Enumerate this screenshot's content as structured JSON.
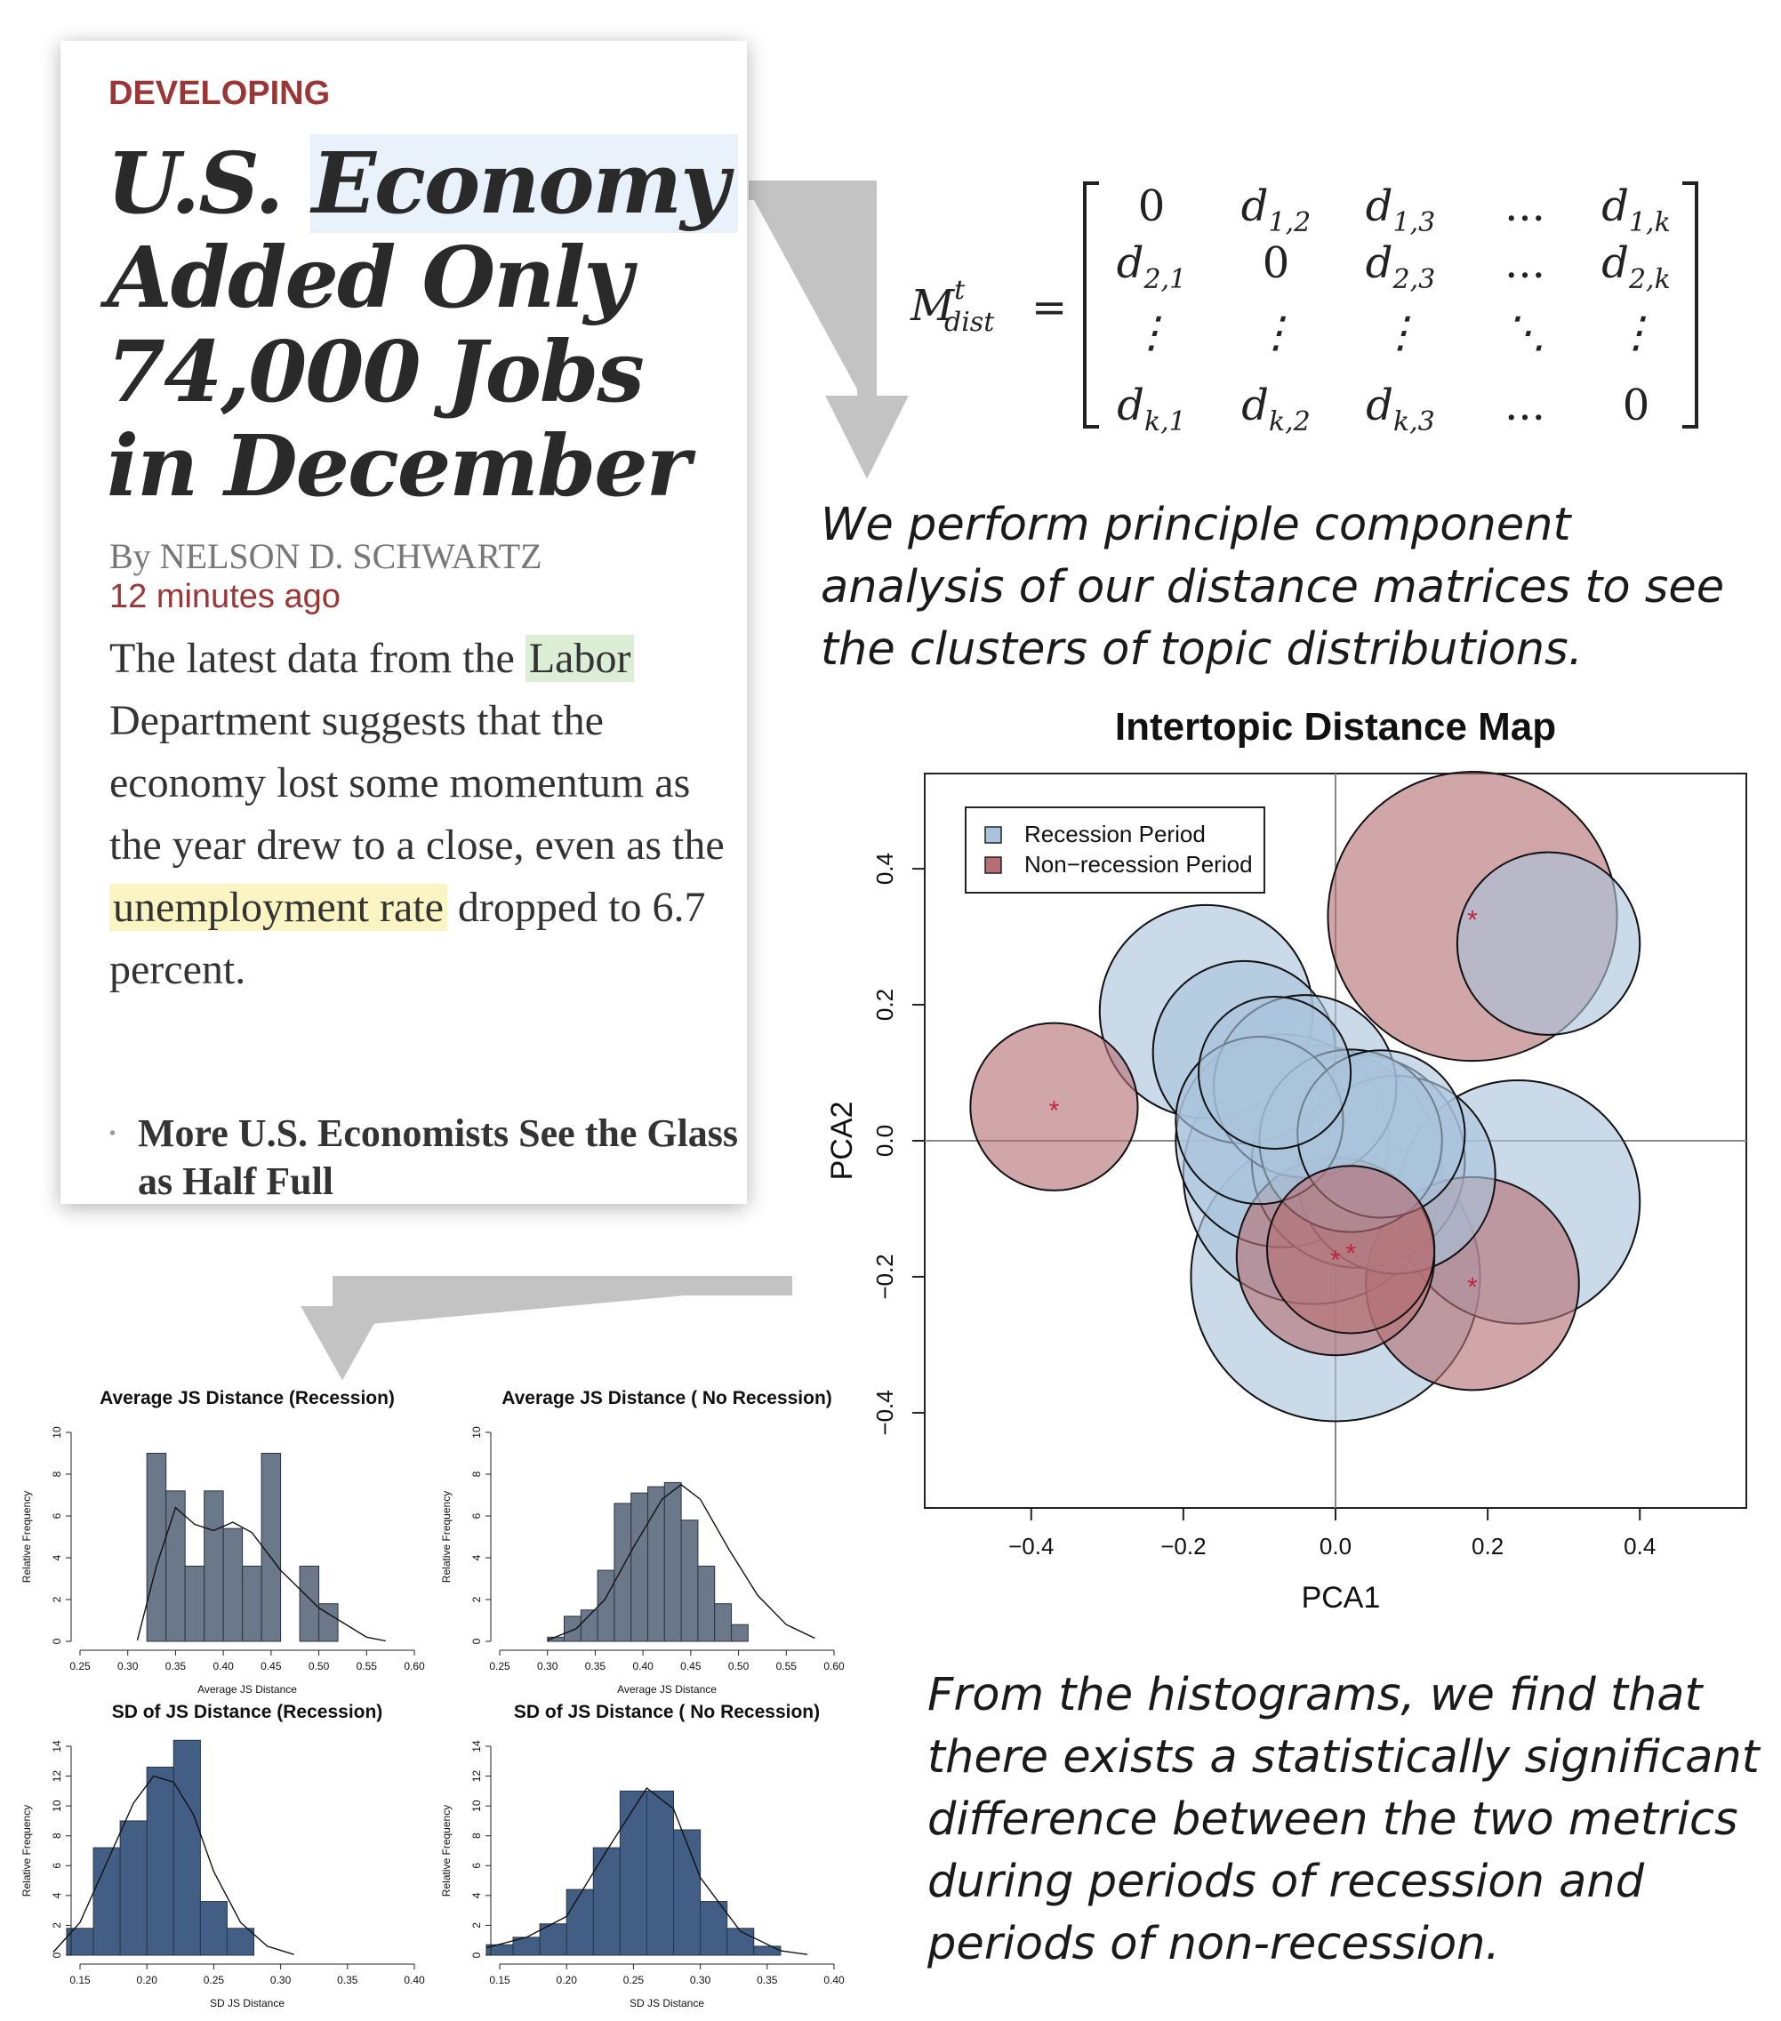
{
  "article": {
    "kicker": "DEVELOPING",
    "headline_pre": "U.S. ",
    "headline_highlight": "Economy",
    "headline_post": "Added Only 74,000 Jobs in December",
    "byline": "By NELSON D. SCHWARTZ",
    "timestamp": "12 minutes ago",
    "body_1": "The latest data from the ",
    "body_highlight_1": "Labor",
    "body_2": " Department suggests that the economy lost some momentum as the year drew to a close, even as the ",
    "body_highlight_2": "unemployment rate",
    "body_3": " dropped to 6.7 percent.",
    "related_bullet": "•",
    "related_link": "More U.S. Economists See the Glass as Half Full"
  },
  "matrix": {
    "lhs": "M",
    "lhs_sup": "t",
    "lhs_sub": "dist",
    "equals": "=",
    "rows": [
      [
        {
          "m": "0",
          "s": ""
        },
        {
          "m": "d",
          "s": "1,2"
        },
        {
          "m": "d",
          "s": "1,3"
        },
        {
          "m": "...",
          "s": ""
        },
        {
          "m": "d",
          "s": "1,k"
        }
      ],
      [
        {
          "m": "d",
          "s": "2,1"
        },
        {
          "m": "0",
          "s": ""
        },
        {
          "m": "d",
          "s": "2,3"
        },
        {
          "m": "...",
          "s": ""
        },
        {
          "m": "d",
          "s": "2,k"
        }
      ],
      [
        {
          "m": "⋮",
          "s": ""
        },
        {
          "m": "⋮",
          "s": ""
        },
        {
          "m": "⋮",
          "s": ""
        },
        {
          "m": "⋱",
          "s": ""
        },
        {
          "m": "⋮",
          "s": ""
        }
      ],
      [
        {
          "m": "d",
          "s": "k,1"
        },
        {
          "m": "d",
          "s": "k,2"
        },
        {
          "m": "d",
          "s": "k,3"
        },
        {
          "m": "...",
          "s": ""
        },
        {
          "m": "0",
          "s": ""
        }
      ]
    ]
  },
  "caption_pca": "We perform principle component analysis of our distance matrices to see the clusters of topic distributions.",
  "caption_hist": "From the histograms, we find that there exists a statistically significant difference between the two metrics during periods of recession and periods of non-recession.",
  "colors": {
    "recession": "#a9c3db",
    "non_recession": "#b56f74",
    "hist_top": "#6a7889",
    "hist_bottom": "#435e84",
    "kicker": "#9b3636",
    "arrow": "#c3c3c3"
  },
  "chart_data": [
    {
      "type": "scatter",
      "title": "Intertopic Distance Map",
      "xlabel": "PCA1",
      "ylabel": "PCA2",
      "xlim": [
        -0.54,
        0.54
      ],
      "ylim": [
        -0.54,
        0.54
      ],
      "xticks": [
        "−0.4",
        "−0.2",
        "0.0",
        "0.2",
        "0.4"
      ],
      "xtick_values": [
        -0.4,
        -0.2,
        0,
        0.2,
        0.4
      ],
      "yticks": [
        "−0.4",
        "−0.2",
        "0.0",
        "0.2",
        "0.4"
      ],
      "ytick_values": [
        -0.4,
        -0.2,
        0,
        0.2,
        0.4
      ],
      "legend": [
        "Recession Period",
        "Non−recession Period"
      ],
      "legend_position": "top-left",
      "series": [
        {
          "name": "Recession Period",
          "points": [
            {
              "x": -0.17,
              "y": 0.19,
              "r": 0.14
            },
            {
              "x": -0.12,
              "y": 0.13,
              "r": 0.12
            },
            {
              "x": -0.08,
              "y": 0.1,
              "r": 0.1
            },
            {
              "x": -0.04,
              "y": 0.08,
              "r": 0.12
            },
            {
              "x": -0.07,
              "y": 0.0,
              "r": 0.14
            },
            {
              "x": -0.1,
              "y": 0.03,
              "r": 0.11
            },
            {
              "x": 0.03,
              "y": -0.03,
              "r": 0.14
            },
            {
              "x": 0.02,
              "y": 0.0,
              "r": 0.12
            },
            {
              "x": 0.08,
              "y": -0.05,
              "r": 0.13
            },
            {
              "x": 0.06,
              "y": 0.01,
              "r": 0.11
            },
            {
              "x": 0.24,
              "y": -0.09,
              "r": 0.16
            },
            {
              "x": 0.28,
              "y": 0.29,
              "r": 0.12
            },
            {
              "x": 0.0,
              "y": -0.2,
              "r": 0.19
            },
            {
              "x": -0.03,
              "y": -0.05,
              "r": 0.17
            }
          ]
        },
        {
          "name": "Non−recession Period",
          "points": [
            {
              "x": -0.37,
              "y": 0.05,
              "r": 0.11
            },
            {
              "x": 0.18,
              "y": 0.33,
              "r": 0.19
            },
            {
              "x": 0.0,
              "y": -0.17,
              "r": 0.13
            },
            {
              "x": 0.18,
              "y": -0.21,
              "r": 0.14
            },
            {
              "x": 0.02,
              "y": -0.16,
              "r": 0.11
            }
          ]
        }
      ]
    },
    {
      "type": "bar",
      "title": "Average JS Distance (Recession)",
      "xlabel": "Average JS Distance",
      "ylabel": "Relative Frequency",
      "xlim": [
        0.25,
        0.6
      ],
      "ylim": [
        0,
        10
      ],
      "xticks": [
        "0.25",
        "0.30",
        "0.35",
        "0.40",
        "0.45",
        "0.50",
        "0.55",
        "0.60"
      ],
      "yticks": [
        "0",
        "2",
        "4",
        "6",
        "8",
        "10"
      ],
      "bin_start": 0.32,
      "bin_width": 0.02,
      "values": [
        9,
        7.2,
        3.6,
        7.2,
        5.4,
        3.6,
        9,
        0,
        3.6,
        1.8
      ],
      "density": [
        [
          0.31,
          0.05
        ],
        [
          0.33,
          3.6
        ],
        [
          0.35,
          6.4
        ],
        [
          0.37,
          5.6
        ],
        [
          0.39,
          5.3
        ],
        [
          0.41,
          5.7
        ],
        [
          0.43,
          5.2
        ],
        [
          0.46,
          3.4
        ],
        [
          0.5,
          1.6
        ],
        [
          0.55,
          0.2
        ],
        [
          0.57,
          0.02
        ]
      ]
    },
    {
      "type": "bar",
      "title": "Average JS Distance ( No Recession)",
      "xlabel": "Average JS Distance",
      "ylabel": "Relative Frequency",
      "xlim": [
        0.25,
        0.6
      ],
      "ylim": [
        0,
        10
      ],
      "xticks": [
        "0.25",
        "0.30",
        "0.35",
        "0.40",
        "0.45",
        "0.50",
        "0.55",
        "0.60"
      ],
      "yticks": [
        "0",
        "2",
        "4",
        "6",
        "8",
        "10"
      ],
      "bin_start": 0.3,
      "bin_width": 0.0175,
      "values": [
        0.2,
        1.2,
        1.5,
        3.4,
        6.6,
        7.1,
        7.4,
        7.6,
        5.8,
        3.6,
        1.8,
        0.8
      ],
      "density": [
        [
          0.3,
          0.05
        ],
        [
          0.33,
          0.6
        ],
        [
          0.36,
          2.0
        ],
        [
          0.39,
          4.5
        ],
        [
          0.42,
          6.8
        ],
        [
          0.44,
          7.5
        ],
        [
          0.46,
          6.8
        ],
        [
          0.49,
          4.4
        ],
        [
          0.52,
          2.2
        ],
        [
          0.55,
          0.8
        ],
        [
          0.58,
          0.15
        ]
      ]
    },
    {
      "type": "bar",
      "title": "SD of JS Distance (Recession)",
      "xlabel": "SD JS Distance",
      "ylabel": "Relative Frequency",
      "xlim": [
        0.13,
        0.4
      ],
      "ylim": [
        0,
        14
      ],
      "xticks": [
        "0.15",
        "0.20",
        "0.25",
        "0.30",
        "0.35",
        "0.40"
      ],
      "yticks": [
        "0",
        "2",
        "4",
        "6",
        "8",
        "10",
        "12",
        "14"
      ],
      "bin_start": 0.14,
      "bin_width": 0.02,
      "values": [
        1.8,
        7.2,
        9,
        12.6,
        14.4,
        3.6,
        1.8
      ],
      "density": [
        [
          0.13,
          0.2
        ],
        [
          0.15,
          2.2
        ],
        [
          0.17,
          6.2
        ],
        [
          0.19,
          10.2
        ],
        [
          0.205,
          12.0
        ],
        [
          0.22,
          11.6
        ],
        [
          0.235,
          9.4
        ],
        [
          0.25,
          5.6
        ],
        [
          0.27,
          2.2
        ],
        [
          0.29,
          0.6
        ],
        [
          0.31,
          0.05
        ]
      ]
    },
    {
      "type": "bar",
      "title": "SD of JS Distance ( No Recession)",
      "xlabel": "SD JS Distance",
      "ylabel": "Relative Frequency",
      "xlim": [
        0.13,
        0.4
      ],
      "ylim": [
        0,
        14
      ],
      "xticks": [
        "0.15",
        "0.20",
        "0.25",
        "0.30",
        "0.35",
        "0.40"
      ],
      "yticks": [
        "0",
        "2",
        "4",
        "6",
        "8",
        "10",
        "12",
        "14"
      ],
      "bin_start": 0.14,
      "bin_width": 0.02,
      "values": [
        0.7,
        1.2,
        2.1,
        4.4,
        7.2,
        11,
        11,
        8.4,
        3.6,
        1.8,
        0.6
      ],
      "density": [
        [
          0.14,
          0.5
        ],
        [
          0.17,
          1.2
        ],
        [
          0.2,
          2.6
        ],
        [
          0.23,
          7.0
        ],
        [
          0.26,
          11.2
        ],
        [
          0.28,
          9.8
        ],
        [
          0.3,
          5.2
        ],
        [
          0.33,
          1.6
        ],
        [
          0.36,
          0.3
        ],
        [
          0.38,
          0.05
        ]
      ]
    }
  ]
}
